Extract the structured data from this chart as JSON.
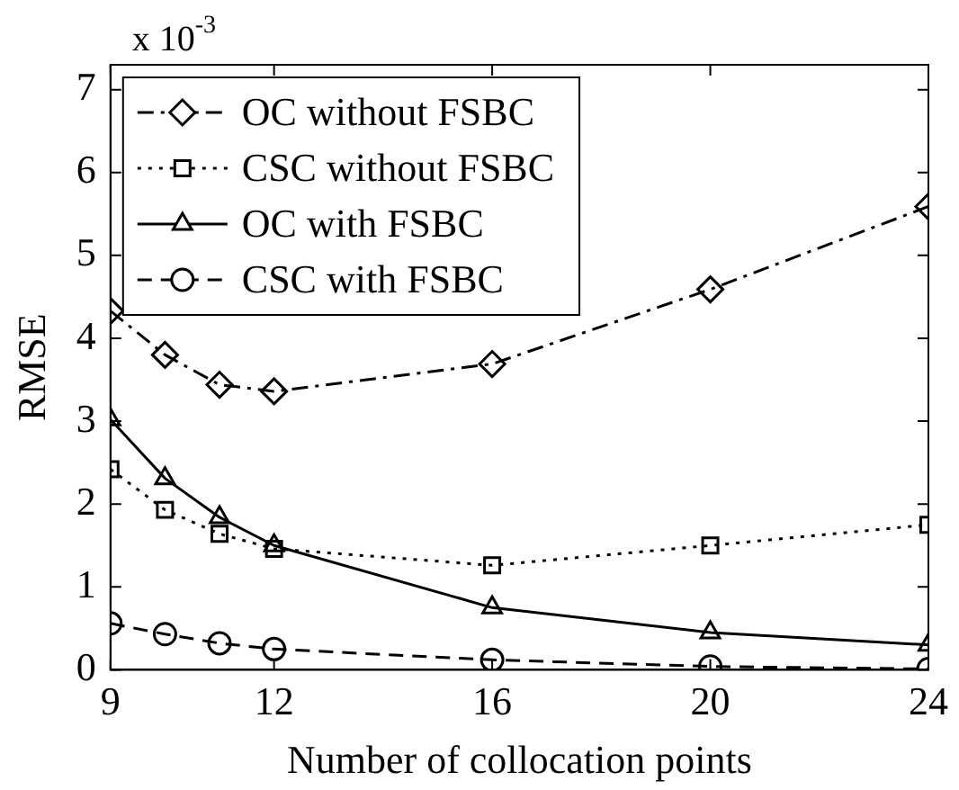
{
  "chart_data": {
    "type": "line",
    "xlabel": "Number of collocation points",
    "ylabel": "RMSE",
    "annotations": [
      "x 10$^{-3}$"
    ],
    "x": [
      9,
      10,
      11,
      12,
      16,
      20,
      24
    ],
    "xlim": [
      9,
      24
    ],
    "xticks": [
      9,
      12,
      16,
      20,
      24
    ],
    "ylim": [
      0,
      7.3
    ],
    "yticks": [
      0,
      1,
      2,
      3,
      4,
      5,
      6,
      7
    ],
    "grid": false,
    "legend": "top left",
    "series": [
      {
        "name": "OC without FSBC",
        "color": "#000000",
        "marker": "diamond",
        "line_style": "dashdot",
        "values": [
          4.33,
          3.8,
          3.44,
          3.36,
          3.69,
          4.59,
          5.59
        ]
      },
      {
        "name": "CSC without FSBC",
        "color": "#000000",
        "marker": "square",
        "line_style": "dotted",
        "values": [
          2.42,
          1.93,
          1.64,
          1.46,
          1.26,
          1.5,
          1.75
        ]
      },
      {
        "name": "OC with FSBC",
        "color": "#000000",
        "marker": "triangle",
        "line_style": "solid",
        "values": [
          3.02,
          2.31,
          1.84,
          1.5,
          0.75,
          0.45,
          0.3
        ]
      },
      {
        "name": "CSC with FSBC",
        "color": "#000000",
        "marker": "circle",
        "line_style": "dashed",
        "values": [
          0.56,
          0.43,
          0.32,
          0.25,
          0.12,
          0.04,
          0.01
        ]
      }
    ]
  }
}
